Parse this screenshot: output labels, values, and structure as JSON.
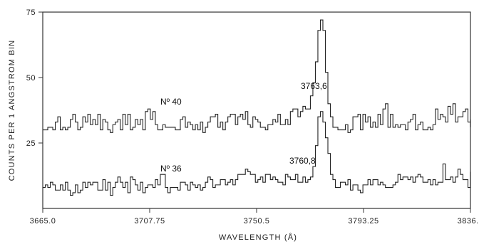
{
  "chart_data": {
    "type": "line",
    "style": "step",
    "title": "",
    "xlabel": "WAVELENGTH (Å)",
    "ylabel": "COUNTS PER 1 ANGSTROM BIN",
    "xlim": [
      3665.0,
      3836.0
    ],
    "ylim": [
      0,
      75
    ],
    "x_ticks": [
      3665.0,
      3707.75,
      3750.5,
      3793.25,
      3836.0
    ],
    "x_tick_labels": [
      "3665.0",
      "3707.75",
      "3750.5",
      "3793.25",
      "3836.0"
    ],
    "y_ticks": [
      25,
      50,
      75
    ],
    "y_tick_labels": [
      "25",
      "50",
      "75"
    ],
    "grid": false,
    "legend": "none",
    "x_start": 3665.0,
    "bin_width": 1,
    "series": [
      {
        "name": "Nº 40",
        "values": [
          30,
          30,
          31,
          31,
          30,
          33,
          35,
          30,
          31,
          30,
          31,
          34,
          36,
          33,
          30,
          31,
          35,
          33,
          36,
          32,
          34,
          32,
          36,
          30,
          34,
          33,
          30,
          29,
          32,
          33,
          34,
          30,
          36,
          32,
          36,
          30,
          31,
          34,
          32,
          34,
          30,
          37,
          38,
          34,
          37,
          32,
          30,
          30,
          32,
          31,
          31,
          31,
          31,
          30,
          30,
          34,
          35,
          31,
          33,
          32,
          30,
          32,
          30,
          33,
          29,
          31,
          33,
          35,
          35,
          36,
          31,
          33,
          30,
          33,
          35,
          36,
          36,
          32,
          35,
          36,
          34,
          37,
          32,
          31,
          35,
          34,
          33,
          31,
          31,
          30,
          32,
          32,
          34,
          33,
          36,
          32,
          32,
          34,
          32,
          37,
          38,
          38,
          35,
          37,
          39,
          38,
          38,
          43,
          48,
          56,
          68,
          72,
          68,
          52,
          40,
          35,
          31,
          31,
          30,
          30,
          30,
          32,
          29,
          30,
          35,
          35,
          36,
          30,
          36,
          33,
          35,
          31,
          33,
          31,
          36,
          32,
          38,
          40,
          31,
          36,
          31,
          32,
          31,
          32,
          32,
          30,
          33,
          34,
          36,
          30,
          32,
          33,
          30,
          30,
          31,
          30,
          32,
          38,
          34,
          36,
          35,
          33,
          39,
          36,
          40,
          33,
          35,
          35,
          37,
          38,
          33,
          32,
          34,
          33,
          31,
          32,
          34,
          33
        ]
      },
      {
        "name": "Nº 36",
        "values": [
          8,
          9,
          8,
          10,
          9,
          7,
          7,
          9,
          7,
          10,
          7,
          5,
          6,
          9,
          6,
          7,
          10,
          8,
          10,
          9,
          10,
          10,
          7,
          7,
          11,
          7,
          10,
          5,
          8,
          10,
          12,
          10,
          8,
          10,
          6,
          12,
          11,
          9,
          7,
          10,
          6,
          8,
          9,
          9,
          8,
          11,
          9,
          13,
          13,
          8,
          6,
          8,
          8,
          8,
          7,
          10,
          10,
          9,
          7,
          10,
          9,
          8,
          9,
          7,
          8,
          10,
          12,
          11,
          8,
          9,
          9,
          11,
          11,
          9,
          10,
          11,
          9,
          11,
          13,
          13,
          13,
          15,
          14,
          13,
          13,
          10,
          11,
          12,
          10,
          13,
          13,
          11,
          12,
          11,
          10,
          10,
          9,
          13,
          12,
          11,
          11,
          13,
          10,
          10,
          12,
          10,
          11,
          12,
          16,
          24,
          35,
          37,
          33,
          27,
          21,
          13,
          11,
          8,
          8,
          10,
          10,
          9,
          11,
          7,
          9,
          9,
          7,
          6,
          9,
          9,
          11,
          9,
          11,
          11,
          9,
          10,
          9,
          8,
          8,
          8,
          9,
          10,
          13,
          11,
          12,
          12,
          11,
          12,
          10,
          12,
          13,
          12,
          10,
          10,
          11,
          9,
          11,
          9,
          10,
          10,
          17,
          11,
          11,
          12,
          10,
          12,
          15,
          13,
          11,
          11,
          8,
          9,
          11,
          12,
          10,
          14
        ]
      }
    ],
    "annotations": [
      {
        "text": "Nº 40"
      },
      {
        "text": "3763,6"
      },
      {
        "text": "Nº 36"
      },
      {
        "text": "3760,8"
      }
    ]
  }
}
